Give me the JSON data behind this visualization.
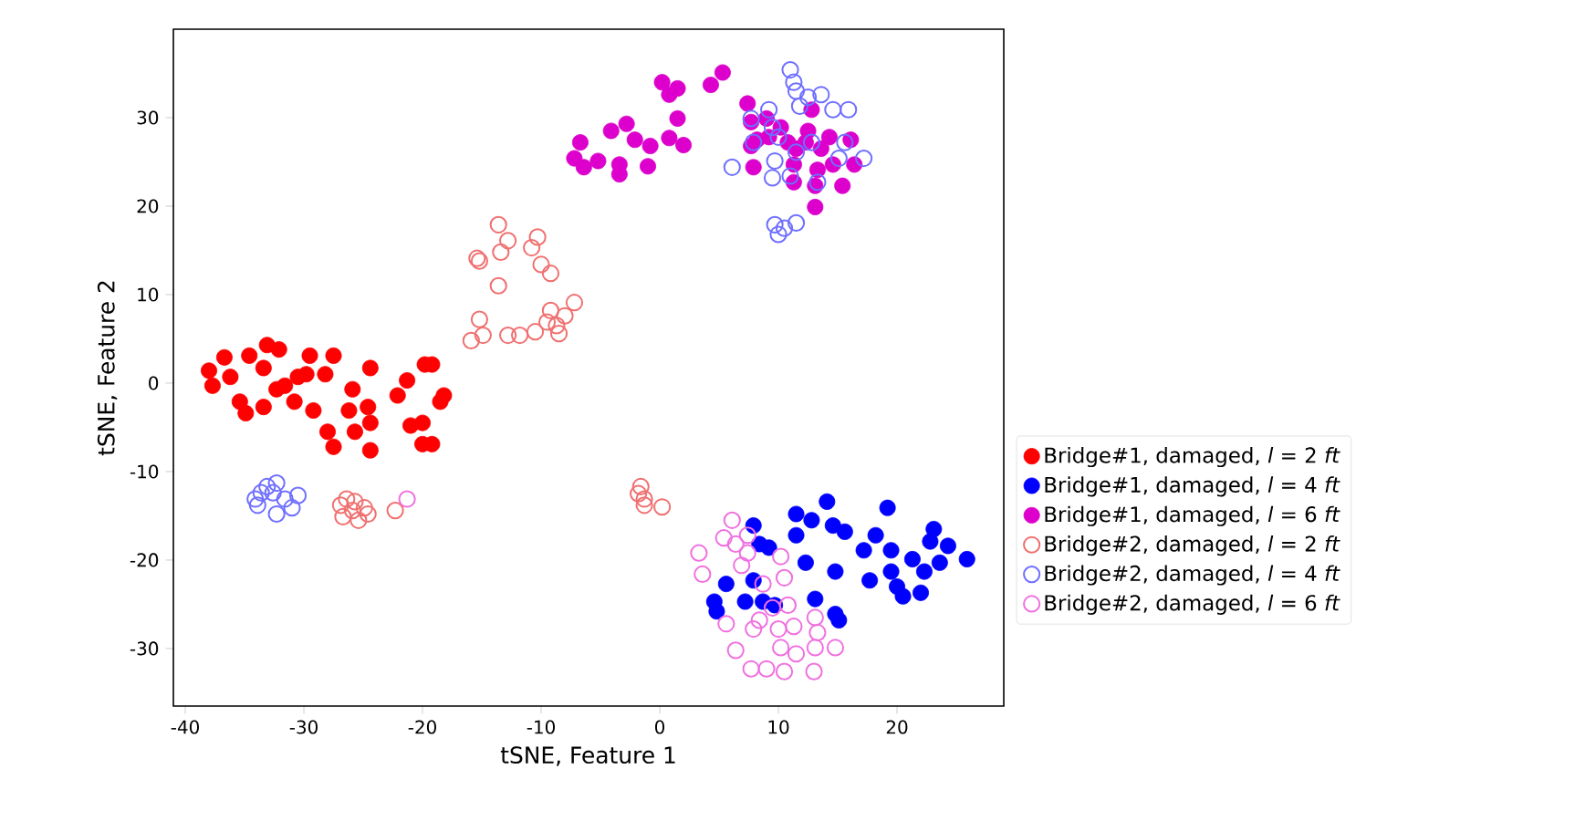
{
  "chart_data": {
    "type": "scatter",
    "xlabel": "tSNE, Feature 1",
    "ylabel": "tSNE, Feature 2",
    "xlim": [
      -41,
      29
    ],
    "ylim": [
      -36.5,
      40
    ],
    "xticks": [
      -40,
      -30,
      -20,
      -10,
      0,
      10,
      20
    ],
    "yticks": [
      -30,
      -20,
      -10,
      0,
      10,
      20,
      30
    ],
    "grid": false,
    "legend": "right",
    "marker": "circle",
    "series": [
      {
        "name": "Bridge#1, damaged, *l* = 2 *ft*",
        "color": "#ff0000",
        "x": [
          -38.0,
          -37.7,
          -36.7,
          -36.2,
          -35.4,
          -34.9,
          -34.6,
          -33.4,
          -33.1,
          -32.1,
          -33.4,
          -32.3,
          -31.6,
          -30.8,
          -30.5,
          -29.5,
          -29.2,
          -29.8,
          -28.2,
          -27.5,
          -28.0,
          -27.5,
          -25.9,
          -26.2,
          -25.7,
          -24.6,
          -24.4,
          -24.4,
          -24.4,
          -22.1,
          -21.3,
          -21.0,
          -20.0,
          -19.8,
          -19.2,
          -18.5,
          -18.2,
          -20.0,
          -19.2
        ],
        "values": [
          1.4,
          -0.3,
          2.9,
          0.7,
          -2.1,
          -3.4,
          3.1,
          1.7,
          4.3,
          3.8,
          -2.7,
          -0.7,
          -0.3,
          -2.1,
          0.7,
          3.1,
          -3.1,
          1.0,
          1.0,
          3.1,
          -5.5,
          -7.2,
          -0.7,
          -3.1,
          -5.5,
          -2.7,
          -4.5,
          1.7,
          -7.6,
          -1.4,
          0.3,
          -4.8,
          -4.5,
          2.1,
          2.1,
          -2.1,
          -1.4,
          -6.9,
          -6.9
        ]
      },
      {
        "name": "Bridge#1, damaged, *l* = 4 *ft*",
        "color": "#0000ff",
        "x": [
          14.1,
          11.5,
          12.8,
          14.6,
          15.6,
          11.5,
          7.9,
          8.4,
          9.2,
          12.3,
          14.8,
          18.2,
          19.2,
          17.2,
          19.5,
          21.3,
          22.8,
          23.1,
          24.3,
          23.6,
          25.9,
          22.3,
          19.5,
          17.7,
          20.0,
          20.5,
          22.0,
          5.6,
          4.6,
          4.8,
          7.2,
          7.9,
          8.7,
          9.7,
          13.1,
          14.8,
          15.1
        ],
        "values": [
          -13.4,
          -14.8,
          -15.5,
          -16.1,
          -16.8,
          -17.2,
          -16.1,
          -18.2,
          -18.6,
          -20.3,
          -21.3,
          -17.2,
          -14.1,
          -18.9,
          -18.9,
          -19.9,
          -17.9,
          -16.5,
          -18.4,
          -20.3,
          -19.9,
          -21.3,
          -21.3,
          -22.3,
          -23.0,
          -24.1,
          -23.7,
          -22.7,
          -24.7,
          -25.8,
          -24.7,
          -22.3,
          -24.7,
          -25.1,
          -24.4,
          -26.1,
          -26.8
        ]
      },
      {
        "name": "Bridge#1, damaged, *l* = 6 *ft*",
        "color": "#dd00cc",
        "x": [
          0.2,
          1.5,
          0.8,
          4.3,
          5.3,
          1.5,
          0.8,
          2.0,
          -4.1,
          -2.8,
          -2.1,
          -0.8,
          -1.0,
          -3.4,
          -3.4,
          -5.2,
          -6.7,
          -7.2,
          -6.4,
          7.4,
          7.7,
          9.0,
          8.2,
          7.7,
          7.9,
          9.2,
          10.2,
          10.8,
          11.3,
          11.3,
          12.8,
          12.5,
          12.3,
          13.6,
          13.3,
          13.1,
          13.1,
          14.6,
          15.4,
          16.1,
          16.4,
          14.3,
          11.5
        ],
        "values": [
          34.0,
          33.3,
          32.6,
          33.7,
          35.1,
          29.9,
          27.7,
          26.9,
          28.5,
          29.3,
          27.5,
          26.8,
          24.5,
          24.7,
          23.6,
          25.1,
          27.2,
          25.4,
          24.4,
          31.6,
          29.5,
          29.9,
          27.5,
          26.8,
          24.4,
          27.8,
          28.9,
          27.2,
          24.7,
          22.7,
          30.9,
          28.5,
          27.2,
          26.5,
          24.1,
          22.3,
          19.9,
          24.7,
          22.3,
          27.5,
          24.7,
          27.8,
          26.5
        ]
      },
      {
        "name": "Bridge#2, damaged, *l* = 2 *ft*",
        "color": "#f07070",
        "x": [
          -26.9,
          -26.4,
          -25.9,
          -25.4,
          -24.6,
          -26.7,
          -25.7,
          -24.9,
          -22.3,
          -13.6,
          -12.8,
          -13.4,
          -15.4,
          -15.2,
          -10.3,
          -10.8,
          -10.0,
          -9.2,
          -13.6,
          -7.2,
          -9.2,
          -8.0,
          -8.7,
          -8.5,
          -9.5,
          -10.5,
          -11.8,
          -12.8,
          -14.9,
          -15.9,
          -15.2,
          -1.6,
          -1.8,
          -1.3,
          -1.3,
          0.2
        ],
        "values": [
          -13.8,
          -13.1,
          -14.4,
          -15.5,
          -14.8,
          -15.1,
          -13.4,
          -14.1,
          -14.4,
          17.9,
          16.1,
          14.8,
          14.1,
          13.8,
          16.5,
          15.3,
          13.4,
          12.4,
          11.0,
          9.1,
          8.2,
          7.6,
          6.5,
          5.6,
          6.9,
          5.8,
          5.4,
          5.4,
          5.4,
          4.8,
          7.2,
          -11.7,
          -12.5,
          -13.1,
          -13.8,
          -14.0
        ]
      },
      {
        "name": "Bridge#2, damaged, *l* = 4 *ft*",
        "color": "#6f6fff",
        "x": [
          -34.1,
          -33.6,
          -33.1,
          -32.3,
          -32.6,
          -31.6,
          -30.5,
          -32.3,
          -31.0,
          -33.9,
          11.0,
          11.3,
          11.5,
          12.5,
          13.6,
          11.8,
          14.6,
          15.9,
          9.2,
          7.7,
          9.5,
          7.9,
          10.0,
          12.8,
          11.5,
          15.6,
          17.2,
          15.1,
          9.7,
          11.0,
          9.5,
          13.3,
          6.1,
          9.7,
          10.5,
          11.5,
          10.0
        ],
        "values": [
          -13.1,
          -12.4,
          -11.7,
          -11.3,
          -12.4,
          -13.1,
          -12.7,
          -14.8,
          -14.1,
          -13.8,
          35.4,
          34.0,
          33.0,
          32.3,
          32.6,
          31.3,
          30.9,
          30.9,
          30.9,
          29.9,
          28.9,
          27.2,
          27.8,
          27.2,
          26.1,
          27.2,
          25.4,
          25.4,
          25.1,
          23.4,
          23.2,
          22.7,
          24.4,
          17.9,
          17.5,
          18.1,
          16.8
        ]
      },
      {
        "name": "Bridge#2, damaged, *l* = 6 *ft*",
        "color": "#f070e0",
        "x": [
          -21.3,
          6.1,
          5.4,
          6.4,
          7.4,
          6.9,
          7.4,
          3.3,
          3.6,
          10.2,
          10.5,
          8.7,
          10.8,
          9.5,
          8.4,
          11.3,
          13.1,
          13.3,
          5.6,
          6.4,
          7.9,
          10.2,
          11.5,
          13.1,
          14.8,
          9.0,
          7.7,
          10.5,
          13.0,
          10.0
        ],
        "values": [
          -13.1,
          -15.5,
          -17.5,
          -18.2,
          -17.2,
          -20.6,
          -19.2,
          -19.2,
          -21.6,
          -19.6,
          -22.0,
          -22.7,
          -25.1,
          -25.4,
          -26.8,
          -27.5,
          -26.5,
          -28.2,
          -27.2,
          -30.2,
          -27.8,
          -29.9,
          -30.6,
          -29.9,
          -29.9,
          -32.3,
          -32.3,
          -32.6,
          -32.6,
          -27.8
        ]
      }
    ]
  }
}
